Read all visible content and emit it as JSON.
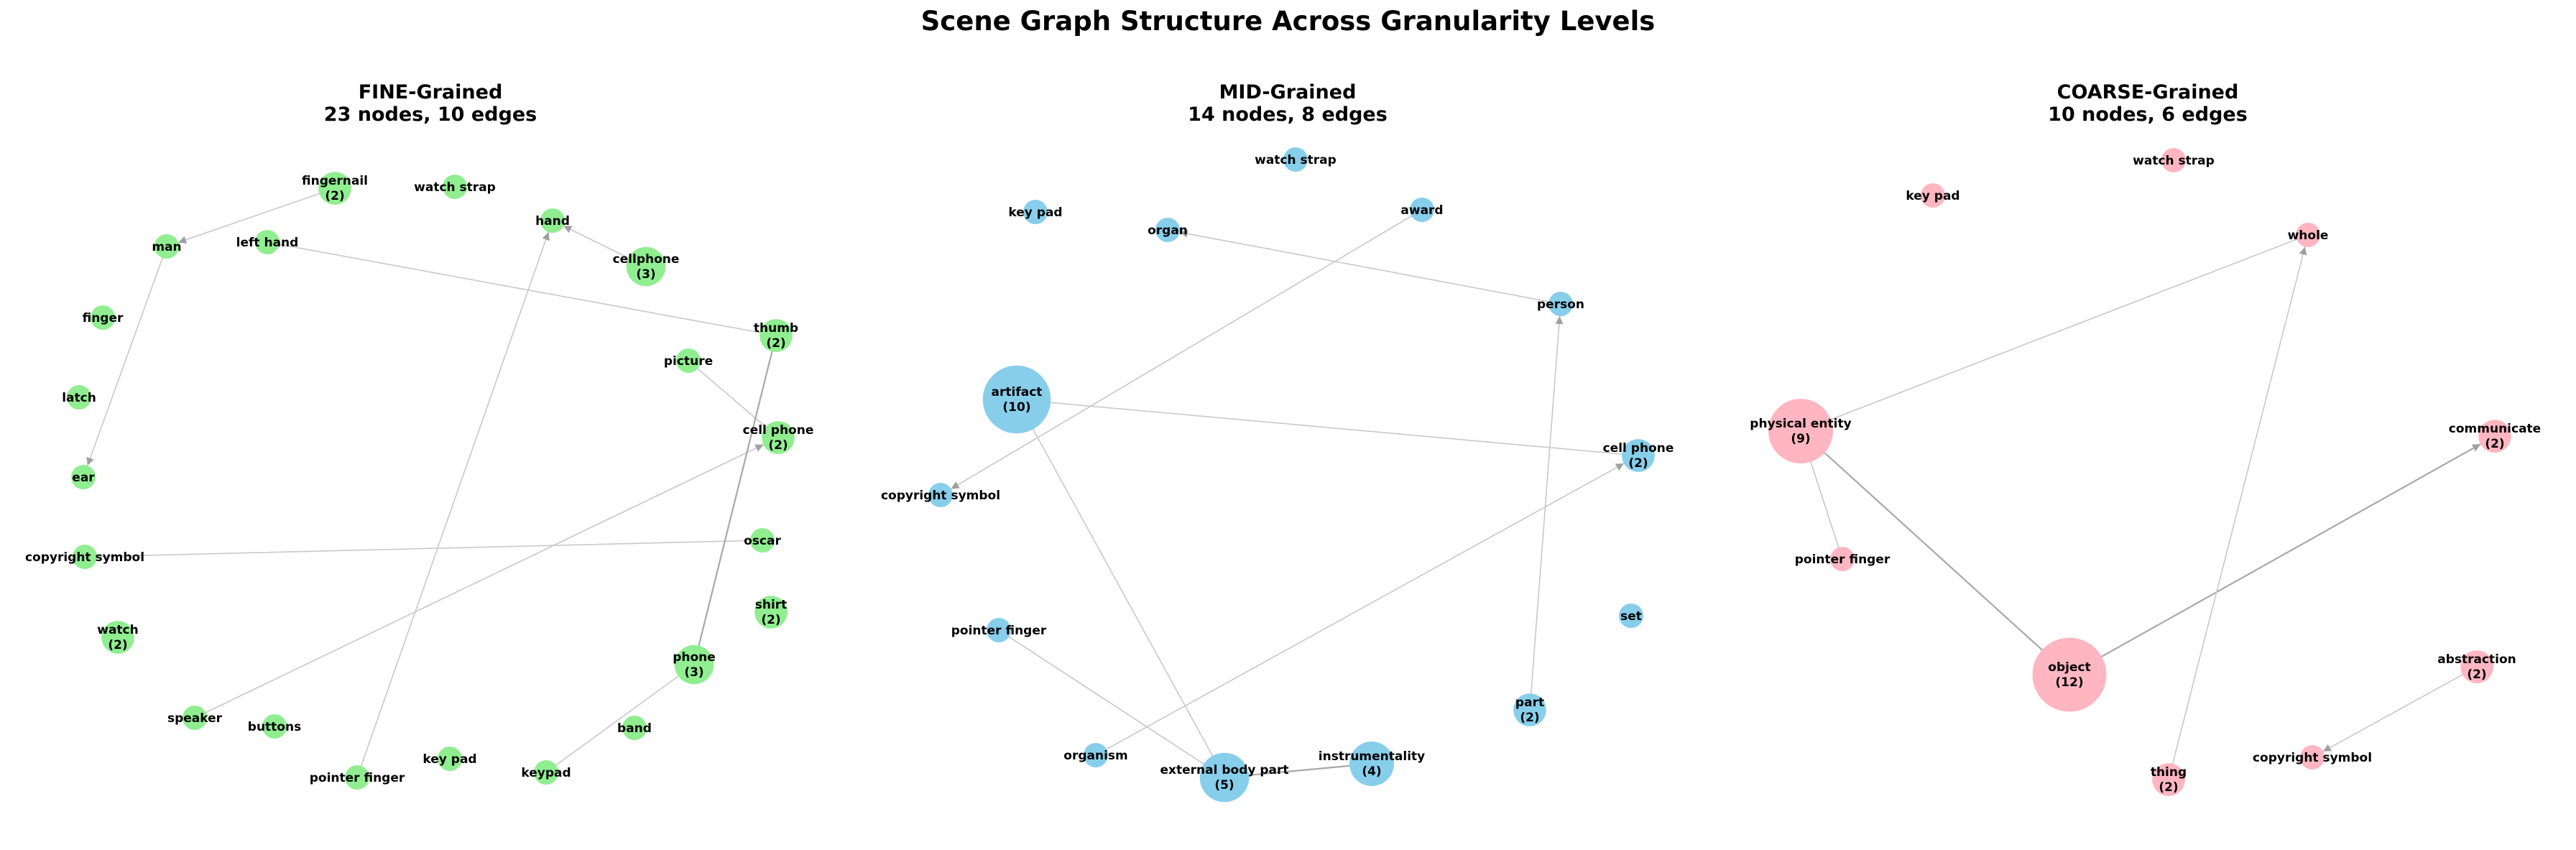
{
  "title": "Scene Graph Structure Across Granularity Levels",
  "colors": {
    "fine": "#90ee90",
    "mid": "#87ceeb",
    "coarse": "#ffb6c1",
    "edge": "#c8c8c8",
    "arrow": "#a0a0a0"
  },
  "panels": [
    {
      "id": "fine",
      "title_line1": "FINE-Grained",
      "title_line2": "23 nodes, 10 edges",
      "nodes": [
        {
          "id": "fingernail",
          "label": "fingernail",
          "count": 2
        },
        {
          "id": "watch strap",
          "label": "watch strap",
          "count": 1
        },
        {
          "id": "hand",
          "label": "hand",
          "count": 1
        },
        {
          "id": "cellphone",
          "label": "cellphone",
          "count": 3
        },
        {
          "id": "man",
          "label": "man",
          "count": 1
        },
        {
          "id": "left hand",
          "label": "left hand",
          "count": 1
        },
        {
          "id": "finger",
          "label": "finger",
          "count": 1
        },
        {
          "id": "thumb",
          "label": "thumb",
          "count": 2
        },
        {
          "id": "picture",
          "label": "picture",
          "count": 1
        },
        {
          "id": "latch",
          "label": "latch",
          "count": 1
        },
        {
          "id": "cell phone",
          "label": "cell phone",
          "count": 2
        },
        {
          "id": "ear",
          "label": "ear",
          "count": 1
        },
        {
          "id": "copyright symbol",
          "label": "copyright symbol",
          "count": 1
        },
        {
          "id": "oscar",
          "label": "oscar",
          "count": 1
        },
        {
          "id": "shirt",
          "label": "shirt",
          "count": 2
        },
        {
          "id": "watch",
          "label": "watch",
          "count": 2
        },
        {
          "id": "phone",
          "label": "phone",
          "count": 3
        },
        {
          "id": "speaker",
          "label": "speaker",
          "count": 1
        },
        {
          "id": "buttons",
          "label": "buttons",
          "count": 1
        },
        {
          "id": "band",
          "label": "band",
          "count": 1
        },
        {
          "id": "key pad",
          "label": "key pad",
          "count": 1
        },
        {
          "id": "pointer finger",
          "label": "pointer finger",
          "count": 1
        },
        {
          "id": "keypad",
          "label": "keypad",
          "count": 1
        }
      ],
      "edges": [
        {
          "from": "fingernail",
          "to": "man",
          "directed": true
        },
        {
          "from": "man",
          "to": "ear",
          "directed": true
        },
        {
          "from": "cellphone",
          "to": "hand",
          "directed": true
        },
        {
          "from": "pointer finger",
          "to": "hand",
          "directed": true
        },
        {
          "from": "left hand",
          "to": "thumb",
          "directed": false
        },
        {
          "from": "picture",
          "to": "cell phone",
          "directed": false
        },
        {
          "from": "speaker",
          "to": "cell phone",
          "directed": true
        },
        {
          "from": "copyright symbol",
          "to": "oscar",
          "directed": false
        },
        {
          "from": "phone",
          "to": "thumb",
          "directed": false,
          "dark": true
        },
        {
          "from": "keypad",
          "to": "phone",
          "directed": false
        }
      ]
    },
    {
      "id": "mid",
      "title_line1": "MID-Grained",
      "title_line2": "14 nodes, 8 edges",
      "nodes": [
        {
          "id": "watch strap",
          "label": "watch strap",
          "count": 1
        },
        {
          "id": "key pad",
          "label": "key pad",
          "count": 1
        },
        {
          "id": "award",
          "label": "award",
          "count": 1
        },
        {
          "id": "organ",
          "label": "organ",
          "count": 1
        },
        {
          "id": "person",
          "label": "person",
          "count": 1
        },
        {
          "id": "artifact",
          "label": "artifact",
          "count": 10
        },
        {
          "id": "cell phone",
          "label": "cell phone",
          "count": 2
        },
        {
          "id": "copyright symbol",
          "label": "copyright symbol",
          "count": 1
        },
        {
          "id": "set",
          "label": "set",
          "count": 1
        },
        {
          "id": "pointer finger",
          "label": "pointer finger",
          "count": 1
        },
        {
          "id": "part",
          "label": "part",
          "count": 2
        },
        {
          "id": "organism",
          "label": "organism",
          "count": 1
        },
        {
          "id": "instrumentality",
          "label": "instrumentality",
          "count": 4
        },
        {
          "id": "external body part",
          "label": "external body part",
          "count": 5
        }
      ],
      "edges": [
        {
          "from": "person",
          "to": "organ",
          "directed": true
        },
        {
          "from": "award",
          "to": "copyright symbol",
          "directed": true
        },
        {
          "from": "artifact",
          "to": "cell phone",
          "directed": false
        },
        {
          "from": "artifact",
          "to": "external body part",
          "directed": false
        },
        {
          "from": "pointer finger",
          "to": "external body part",
          "directed": false
        },
        {
          "from": "organism",
          "to": "cell phone",
          "directed": true
        },
        {
          "from": "instrumentality",
          "to": "external body part",
          "directed": false,
          "dark": true
        },
        {
          "from": "part",
          "to": "person",
          "directed": true
        }
      ]
    },
    {
      "id": "coarse",
      "title_line1": "COARSE-Grained",
      "title_line2": "10 nodes, 6 edges",
      "nodes": [
        {
          "id": "key pad",
          "label": "key pad",
          "count": 1
        },
        {
          "id": "watch strap",
          "label": "watch strap",
          "count": 1
        },
        {
          "id": "whole",
          "label": "whole",
          "count": 1
        },
        {
          "id": "physical entity",
          "label": "physical entity",
          "count": 9
        },
        {
          "id": "communicate",
          "label": "communicate",
          "count": 2
        },
        {
          "id": "pointer finger",
          "label": "pointer finger",
          "count": 1
        },
        {
          "id": "object",
          "label": "object",
          "count": 12
        },
        {
          "id": "abstraction",
          "label": "abstraction",
          "count": 2
        },
        {
          "id": "thing",
          "label": "thing",
          "count": 2
        },
        {
          "id": "copyright symbol",
          "label": "copyright symbol",
          "count": 1
        }
      ],
      "edges": [
        {
          "from": "physical entity",
          "to": "whole",
          "directed": false
        },
        {
          "from": "physical entity",
          "to": "pointer finger",
          "directed": false
        },
        {
          "from": "physical entity",
          "to": "object",
          "directed": false,
          "dark": true
        },
        {
          "from": "object",
          "to": "communicate",
          "directed": true,
          "dark": true
        },
        {
          "from": "thing",
          "to": "whole",
          "directed": true
        },
        {
          "from": "abstraction",
          "to": "copyright symbol",
          "directed": true
        }
      ]
    }
  ]
}
